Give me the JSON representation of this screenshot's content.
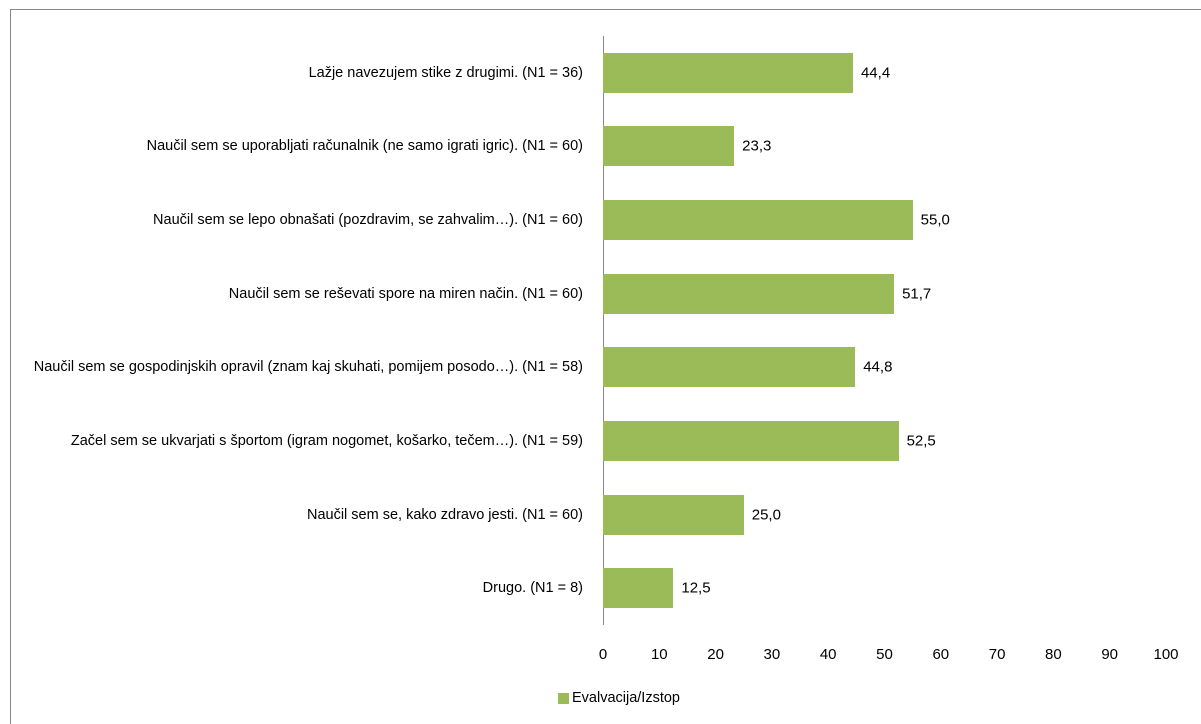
{
  "chart_data": {
    "type": "bar",
    "orientation": "horizontal",
    "categories": [
      "Lažje navezujem stike z drugimi. (N1 = 36)",
      "Naučil sem se uporabljati računalnik (ne samo igrati igric). (N1 = 60)",
      "Naučil sem se lepo obnašati (pozdravim, se zahvalim…). (N1 = 60)",
      "Naučil sem se reševati spore na miren način. (N1 = 60)",
      "Naučil sem se gospodinjskih opravil (znam kaj skuhati, pomijem posodo…). (N1 = 58)",
      "Začel sem se ukvarjati s športom (igram nogomet, košarko, tečem…). (N1 = 59)",
      "Naučil sem se, kako zdravo jesti. (N1 = 60)",
      "Drugo. (N1 = 8)"
    ],
    "series": [
      {
        "name": "Evalvacija/Izstop",
        "color": "#9bbb59",
        "values": [
          44.4,
          23.3,
          55.0,
          51.7,
          44.8,
          52.5,
          25.0,
          12.5
        ],
        "value_labels": [
          "44,4",
          "23,3",
          "55,0",
          "51,7",
          "44,8",
          "52,5",
          "25,0",
          "12,5"
        ]
      }
    ],
    "xlim": [
      0,
      100
    ],
    "xticks": [
      0,
      10,
      20,
      30,
      40,
      50,
      60,
      70,
      80,
      90,
      100
    ],
    "grid": false,
    "legend": "bottom"
  }
}
